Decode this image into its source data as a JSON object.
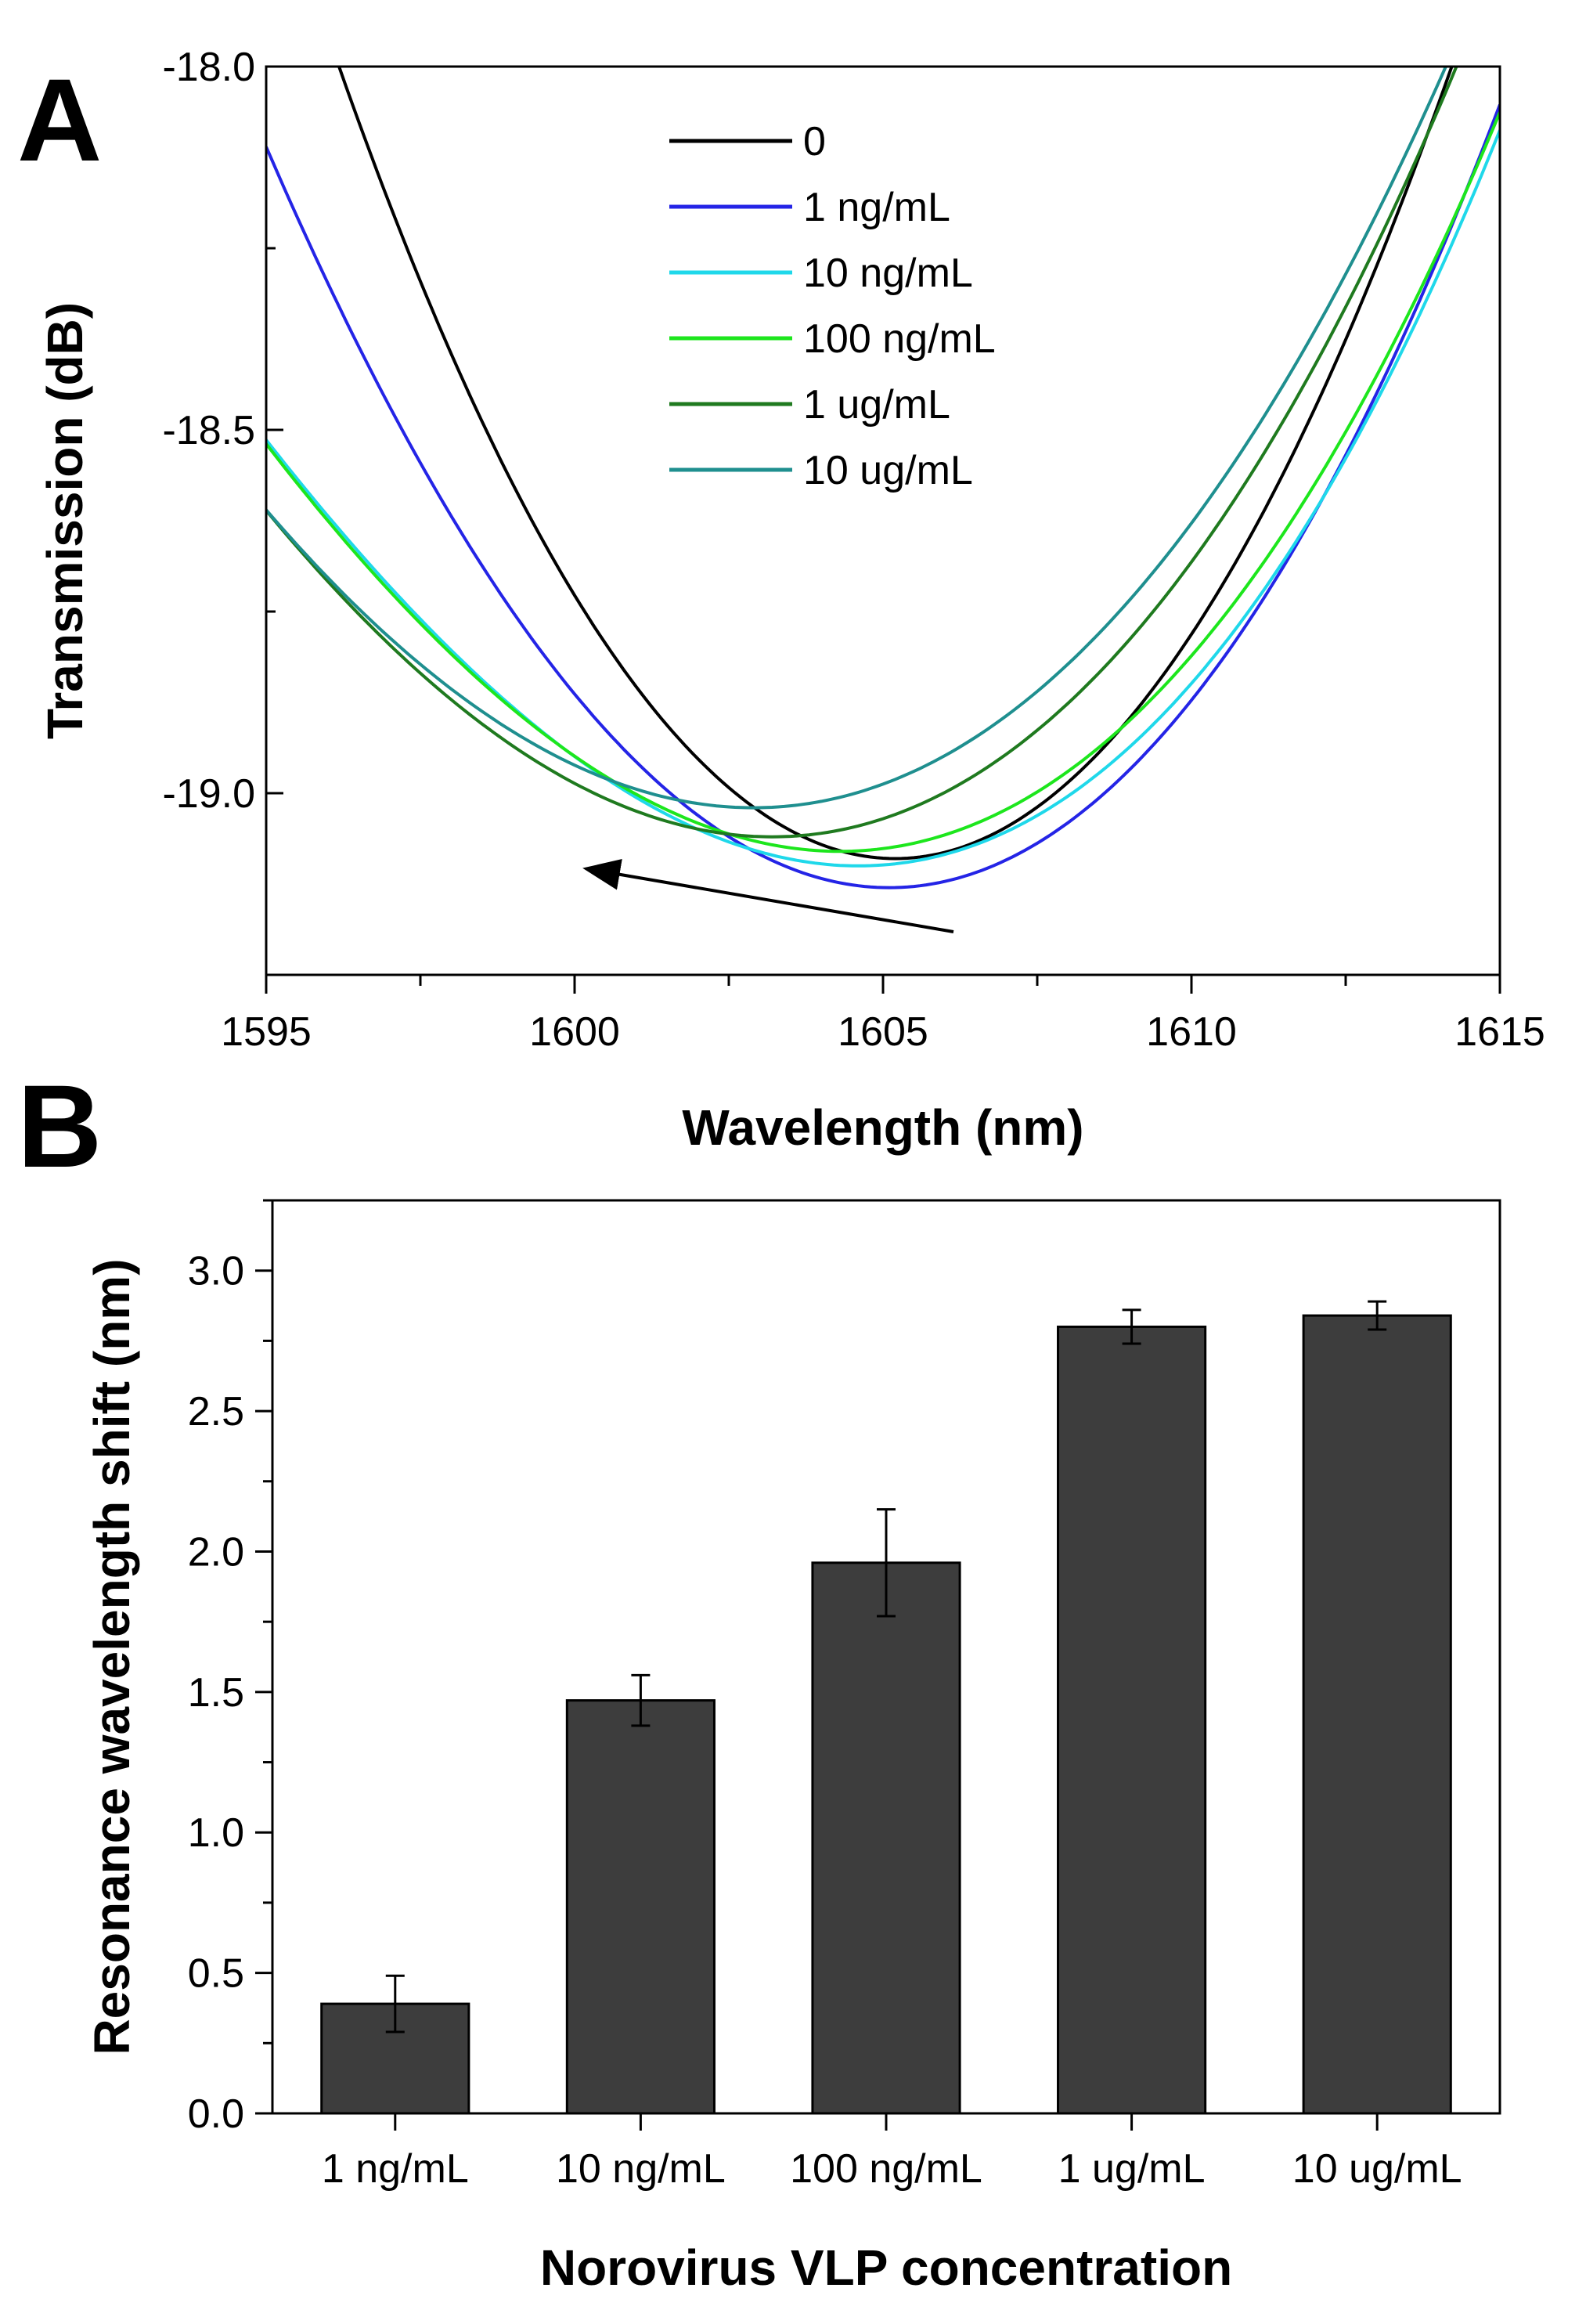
{
  "panels": {
    "a_label": "A",
    "b_label": "B"
  },
  "chart_data": [
    {
      "type": "line",
      "panel": "A",
      "title": "",
      "xlabel": "Wavelength (nm)",
      "ylabel": "Transmission (dB)",
      "xlim": [
        1595,
        1615
      ],
      "ylim": [
        -19.25,
        -18.0
      ],
      "xticks": [
        "1595",
        "1600",
        "1605",
        "1610",
        "1615"
      ],
      "yticks": [
        "-18.0",
        "-18.5",
        "-19.0"
      ],
      "legend_position": "top-center",
      "annotation": "arrow pointing toward shorter wavelength (blue shift) as concentration increases",
      "series": [
        {
          "name": "0",
          "color": "#000000",
          "model": {
            "min_x": 1605.2,
            "min_y": -19.09,
            "a": 0.0134,
            "b": 0.0
          }
        },
        {
          "name": "1 ng/mL",
          "color": "#2424e6",
          "model": {
            "min_x": 1605.1,
            "min_y": -19.13,
            "a": 0.0105,
            "b": 5e-05
          }
        },
        {
          "name": "10 ng/mL",
          "color": "#1fd8ea",
          "model": {
            "min_x": 1604.6,
            "min_y": -19.1,
            "a": 0.0078,
            "b": 0.00015
          }
        },
        {
          "name": "100 ng/mL",
          "color": "#1de61d",
          "model": {
            "min_x": 1604.3,
            "min_y": -19.08,
            "a": 0.0076,
            "b": 0.00012
          }
        },
        {
          "name": "1 ug/mL",
          "color": "#1f7a1f",
          "model": {
            "min_x": 1603.2,
            "min_y": -19.06,
            "a": 0.0075,
            "b": 0.0001
          }
        },
        {
          "name": "10 ug/mL",
          "color": "#1f8f8f",
          "model": {
            "min_x": 1602.9,
            "min_y": -19.02,
            "a": 0.0072,
            "b": 8e-05
          }
        }
      ]
    },
    {
      "type": "bar",
      "panel": "B",
      "title": "",
      "xlabel": "Norovirus VLP concentration",
      "ylabel": "Resonance wavelength shift (nm)",
      "ylim": [
        0,
        3.25
      ],
      "yticks": [
        "0.0",
        "0.5",
        "1.0",
        "1.5",
        "2.0",
        "2.5",
        "3.0"
      ],
      "categories": [
        "1 ng/mL",
        "10 ng/mL",
        "100 ng/mL",
        "1 ug/mL",
        "10 ug/mL"
      ],
      "values": [
        0.39,
        1.47,
        1.96,
        2.8,
        2.84
      ],
      "errors": [
        0.1,
        0.09,
        0.19,
        0.06,
        0.05
      ],
      "bar_color": "#3d3d3d"
    }
  ]
}
